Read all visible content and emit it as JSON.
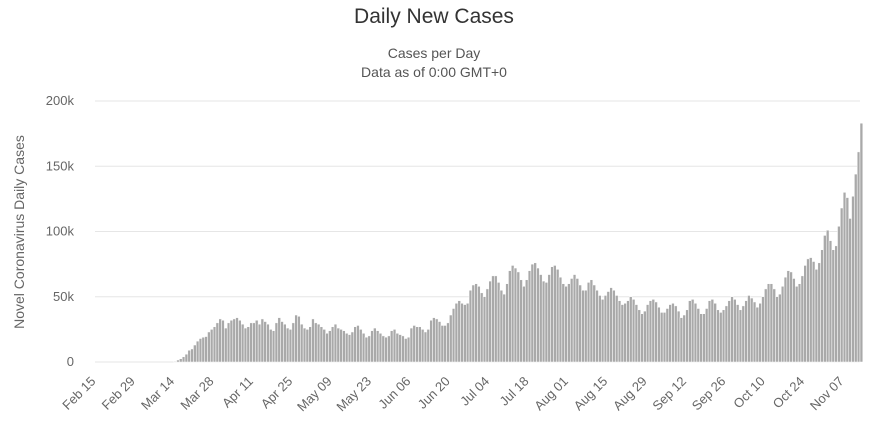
{
  "chart_data": {
    "type": "bar",
    "title": "Daily New Cases",
    "subtitle": [
      "Cases per Day",
      "Data as of 0:00 GMT+0"
    ],
    "xlabel": "",
    "ylabel": "Novel Coronavirus Daily Cases",
    "ylim": [
      0,
      200000
    ],
    "yticks": [
      {
        "value": 0,
        "label": "0"
      },
      {
        "value": 50000,
        "label": "50k"
      },
      {
        "value": 100000,
        "label": "100k"
      },
      {
        "value": 150000,
        "label": "150k"
      },
      {
        "value": 200000,
        "label": "200k"
      }
    ],
    "x_start": "2020-02-15",
    "x_end": "2020-11-12",
    "xtick_labels": [
      {
        "date": "2020-02-15",
        "label": "Feb 15"
      },
      {
        "date": "2020-02-29",
        "label": "Feb 29"
      },
      {
        "date": "2020-03-14",
        "label": "Mar 14"
      },
      {
        "date": "2020-03-28",
        "label": "Mar 28"
      },
      {
        "date": "2020-04-11",
        "label": "Apr 11"
      },
      {
        "date": "2020-04-25",
        "label": "Apr 25"
      },
      {
        "date": "2020-05-09",
        "label": "May 09"
      },
      {
        "date": "2020-05-23",
        "label": "May 23"
      },
      {
        "date": "2020-06-06",
        "label": "Jun 06"
      },
      {
        "date": "2020-06-20",
        "label": "Jun 20"
      },
      {
        "date": "2020-07-04",
        "label": "Jul 04"
      },
      {
        "date": "2020-07-18",
        "label": "Jul 18"
      },
      {
        "date": "2020-08-01",
        "label": "Aug 01"
      },
      {
        "date": "2020-08-15",
        "label": "Aug 15"
      },
      {
        "date": "2020-08-29",
        "label": "Aug 29"
      },
      {
        "date": "2020-09-12",
        "label": "Sep 12"
      },
      {
        "date": "2020-09-26",
        "label": "Sep 26"
      },
      {
        "date": "2020-10-10",
        "label": "Oct 10"
      },
      {
        "date": "2020-10-24",
        "label": "Oct 24"
      },
      {
        "date": "2020-11-07",
        "label": "Nov 07"
      }
    ],
    "grid": true,
    "bar_color": "#a9a9a9",
    "values": [
      0,
      0,
      0,
      0,
      0,
      0,
      0,
      0,
      0,
      0,
      0,
      0,
      0,
      0,
      0,
      0,
      0,
      0,
      0,
      0,
      0,
      0,
      0,
      0,
      0,
      0,
      0,
      0,
      500,
      1500,
      2500,
      4000,
      6000,
      9000,
      10000,
      13000,
      16000,
      18000,
      19000,
      19500,
      23000,
      25000,
      27000,
      30000,
      33000,
      32000,
      26000,
      30000,
      32000,
      33000,
      34000,
      32000,
      29000,
      26000,
      27000,
      30000,
      30000,
      32000,
      29000,
      33000,
      31000,
      29000,
      25000,
      24000,
      30000,
      34000,
      31000,
      29000,
      26000,
      25000,
      30000,
      36000,
      35000,
      29000,
      26000,
      25000,
      27000,
      33000,
      30000,
      29000,
      27000,
      25000,
      22000,
      24000,
      27000,
      29000,
      26000,
      25000,
      24000,
      22000,
      21000,
      23000,
      27000,
      28000,
      25000,
      22000,
      19000,
      20000,
      24000,
      26000,
      24000,
      22000,
      20000,
      19000,
      20000,
      24000,
      25000,
      22000,
      21000,
      20000,
      18000,
      19000,
      26000,
      28000,
      27000,
      27000,
      25000,
      23000,
      25000,
      32000,
      34000,
      33000,
      31000,
      28000,
      28000,
      30000,
      36000,
      41000,
      45000,
      47000,
      45000,
      44000,
      45000,
      55000,
      59000,
      60000,
      58000,
      53000,
      50000,
      56000,
      62000,
      66000,
      66000,
      61000,
      55000,
      52000,
      60000,
      70000,
      74000,
      72000,
      69000,
      63000,
      58000,
      63000,
      70000,
      75000,
      76000,
      72000,
      67000,
      62000,
      61000,
      67000,
      73000,
      74000,
      71000,
      65000,
      60000,
      58000,
      60000,
      64000,
      67000,
      64000,
      59000,
      55000,
      55000,
      61000,
      63000,
      59000,
      55000,
      51000,
      48000,
      51000,
      54000,
      57000,
      55000,
      51000,
      47000,
      44000,
      45000,
      47000,
      50000,
      48000,
      44000,
      40000,
      37000,
      39000,
      44000,
      47000,
      48000,
      46000,
      42000,
      38000,
      38000,
      41000,
      44000,
      45000,
      43000,
      39000,
      34000,
      36000,
      40000,
      47000,
      48000,
      45000,
      41000,
      37000,
      37000,
      41000,
      47000,
      48000,
      45000,
      40000,
      38000,
      40000,
      43000,
      47000,
      50000,
      48000,
      44000,
      40000,
      43000,
      47000,
      51000,
      49000,
      46000,
      42000,
      45000,
      50000,
      56000,
      60000,
      60000,
      56000,
      50000,
      52000,
      58000,
      65000,
      70000,
      69000,
      64000,
      58000,
      60000,
      66000,
      74000,
      79000,
      80000,
      77000,
      71000,
      76000,
      86000,
      97000,
      101000,
      93000,
      86000,
      89000,
      104000,
      118000,
      130000,
      126000,
      110000,
      127000,
      144000,
      161000,
      183000
    ]
  }
}
